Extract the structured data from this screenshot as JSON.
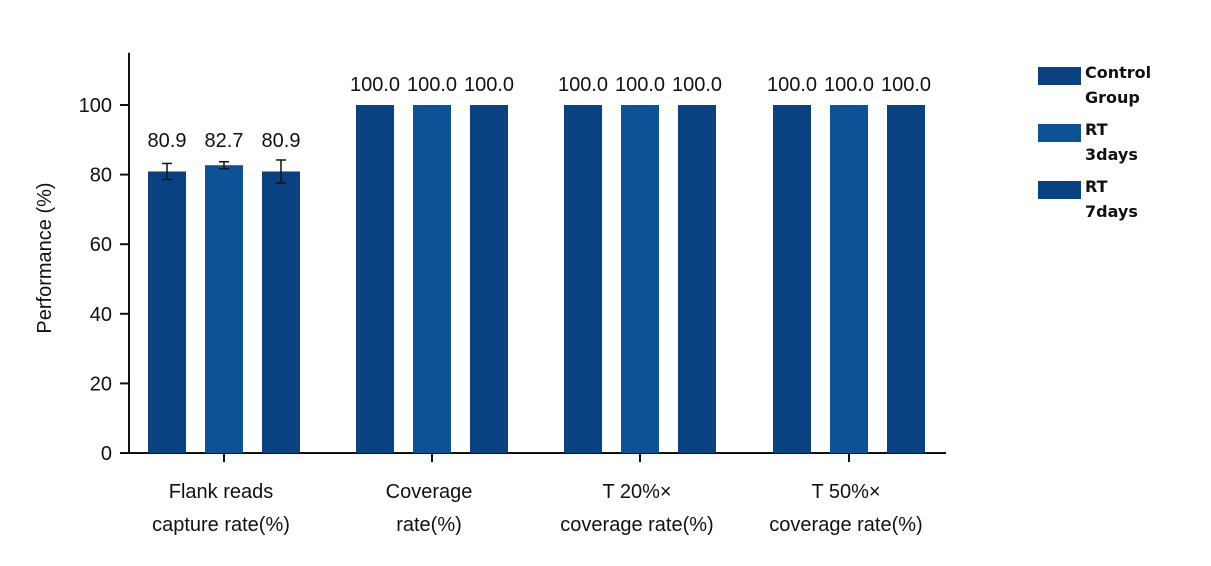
{
  "chart_data": {
    "type": "bar",
    "ylabel": "Performance (%)",
    "xlabel": "",
    "ylim": [
      0,
      115
    ],
    "yticks": [
      0,
      20,
      40,
      60,
      80,
      100
    ],
    "grid": false,
    "legend_position": "top-right",
    "categories": [
      [
        "Flank reads",
        "capture rate(%)"
      ],
      [
        "Coverage",
        "rate(%)"
      ],
      [
        "T 20%×",
        "coverage rate(%)"
      ],
      [
        "T 50%×",
        "coverage rate(%)"
      ]
    ],
    "series": [
      {
        "name": "Control Group",
        "legend_lines": [
          "Control",
          "Group"
        ],
        "color": "#0a4181",
        "values": [
          80.9,
          100.0,
          100.0,
          100.0
        ],
        "errors": [
          2.3,
          null,
          null,
          null
        ],
        "labels": [
          "80.9",
          "100.0",
          "100.0",
          "100.0"
        ]
      },
      {
        "name": "RT 3days",
        "legend_lines": [
          "RT",
          "3days"
        ],
        "color": "#0d5197",
        "values": [
          82.7,
          100.0,
          100.0,
          100.0
        ],
        "errors": [
          1.0,
          null,
          null,
          null
        ],
        "labels": [
          "82.7",
          "100.0",
          "100.0",
          "100.0"
        ]
      },
      {
        "name": "RT 7days",
        "legend_lines": [
          "RT",
          "7days"
        ],
        "color": "#0a4181",
        "values": [
          80.9,
          100.0,
          100.0,
          100.0
        ],
        "errors": [
          3.3,
          null,
          null,
          null
        ],
        "labels": [
          "80.9",
          "100.0",
          "100.0",
          "100.0"
        ]
      }
    ]
  }
}
